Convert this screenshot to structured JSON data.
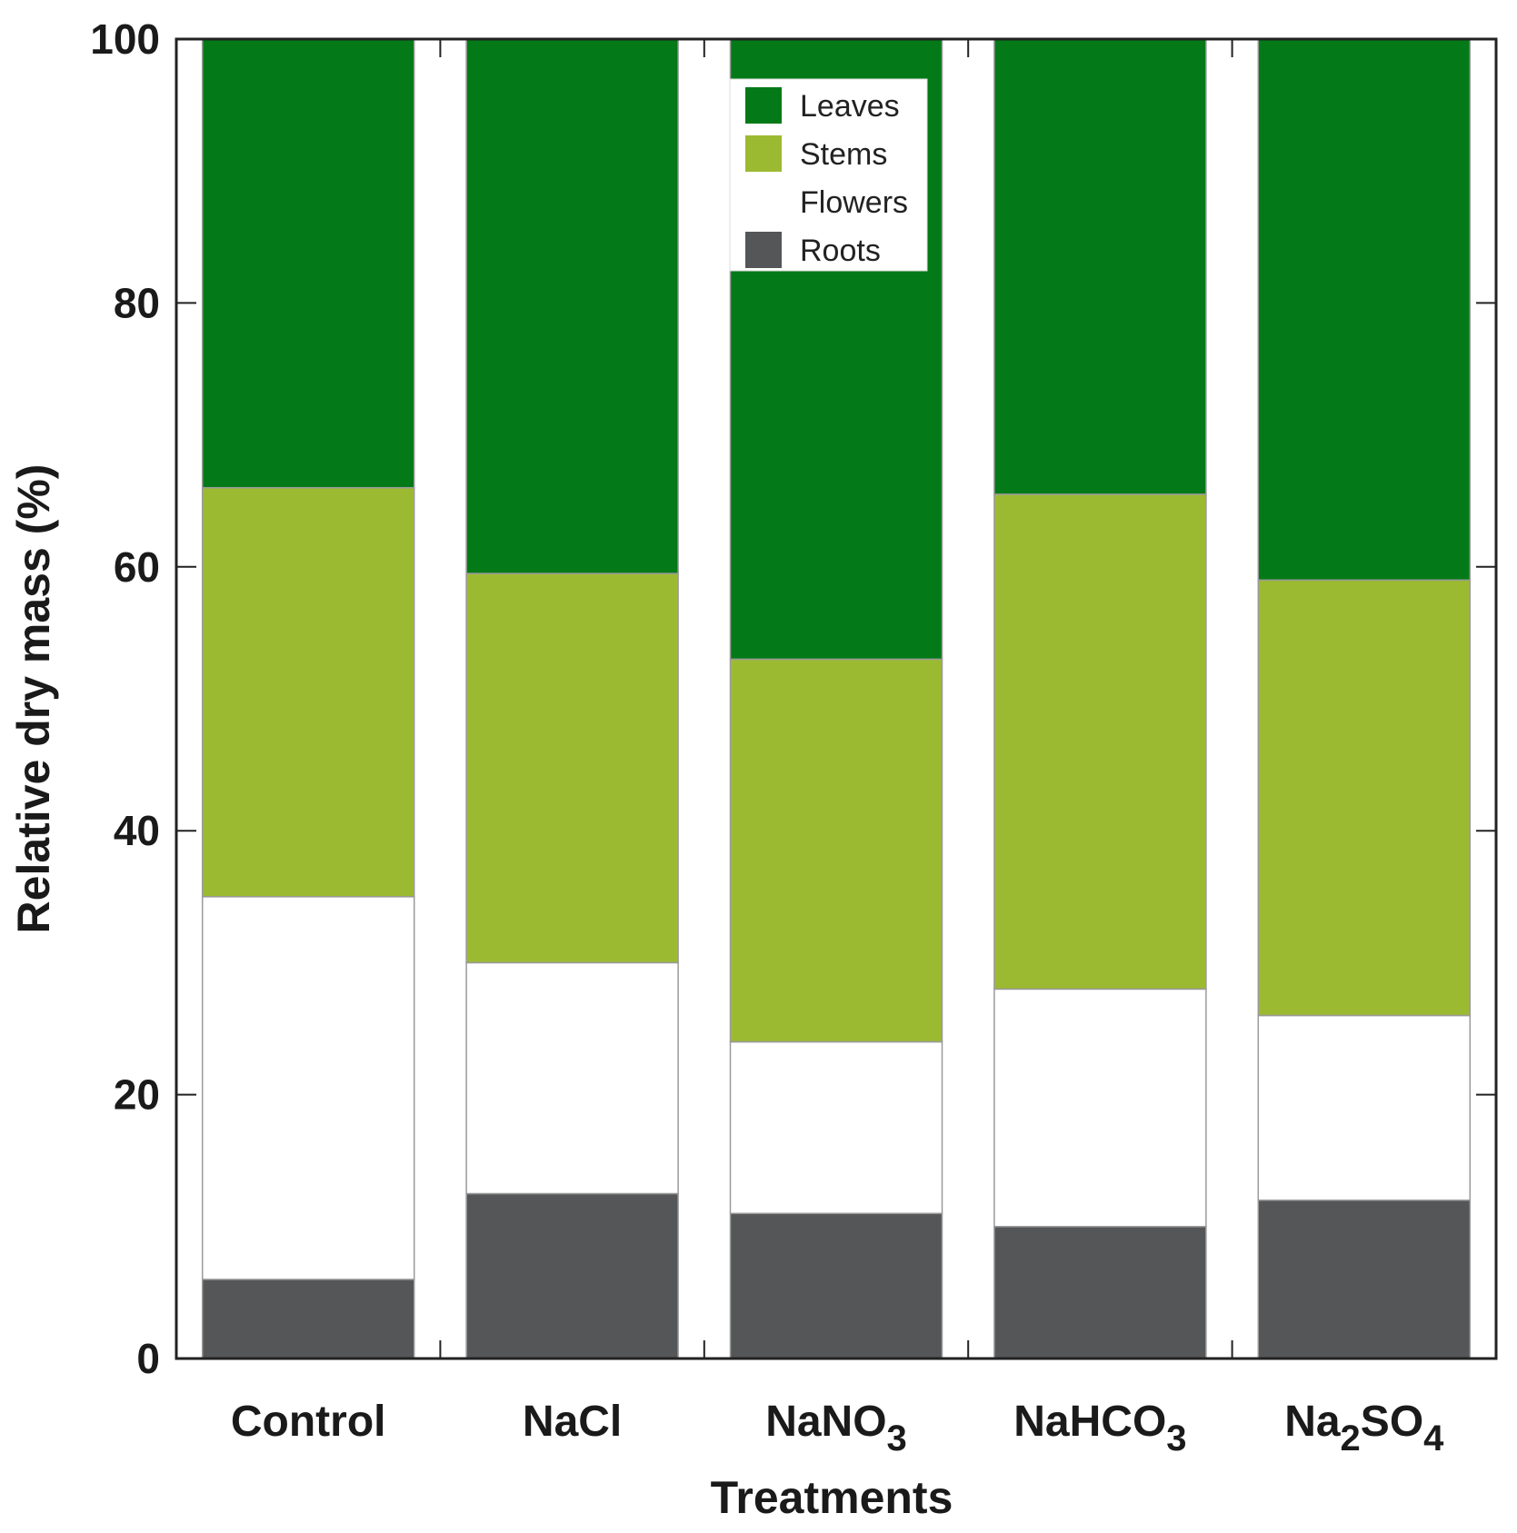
{
  "chart_data": {
    "type": "bar",
    "stacked": true,
    "categories": [
      {
        "base": "Control",
        "sub": "",
        "tail": "",
        "sub2": ""
      },
      {
        "base": "NaCl",
        "sub": "",
        "tail": "",
        "sub2": ""
      },
      {
        "base": "NaNO",
        "sub": "3",
        "tail": "",
        "sub2": ""
      },
      {
        "base": "NaHCO",
        "sub": "3",
        "tail": "",
        "sub2": ""
      },
      {
        "base": "Na",
        "sub": "2",
        "tail": "SO",
        "sub2": "4"
      }
    ],
    "series": [
      {
        "name": "Roots",
        "color": "#555657",
        "values": [
          6,
          12.5,
          11,
          10,
          12
        ]
      },
      {
        "name": "Flowers",
        "color": "#ffffff",
        "values": [
          29,
          17.5,
          13,
          18,
          14
        ]
      },
      {
        "name": "Stems",
        "color": "#9cba31",
        "values": [
          31,
          29.5,
          29,
          37.5,
          33
        ]
      },
      {
        "name": "Leaves",
        "color": "#037a17",
        "values": [
          34,
          40.5,
          47,
          34.5,
          41
        ]
      }
    ],
    "legend_order": [
      "Leaves",
      "Stems",
      "Flowers",
      "Roots"
    ],
    "legend_position": "top-center",
    "xlabel": "Treatments",
    "ylabel": "Relative dry mass (%)",
    "ylim": [
      0,
      100
    ],
    "yticks": [
      0,
      20,
      40,
      60,
      80,
      100
    ],
    "grid": false
  }
}
